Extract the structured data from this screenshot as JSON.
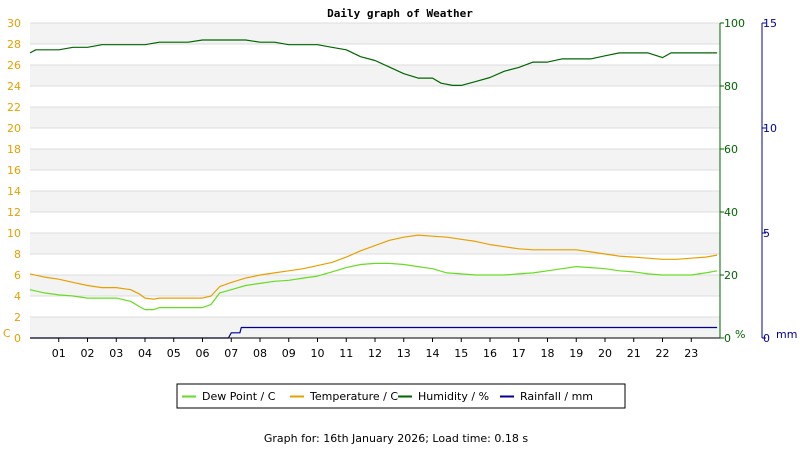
{
  "chart_data": {
    "type": "line",
    "title": "Daily graph of Weather",
    "footer": "Graph for: 16th January 2026; Load time: 0.18 s",
    "x_ticks": [
      "01",
      "02",
      "03",
      "04",
      "05",
      "06",
      "07",
      "08",
      "09",
      "10",
      "11",
      "12",
      "13",
      "14",
      "15",
      "16",
      "17",
      "18",
      "19",
      "20",
      "21",
      "22",
      "23"
    ],
    "x_range": [
      0,
      24
    ],
    "axes": {
      "temperature": {
        "unit_label": "C",
        "ylim": [
          0,
          30
        ],
        "ticks": [
          "0",
          "2",
          "4",
          "6",
          "8",
          "10",
          "12",
          "14",
          "16",
          "18",
          "20",
          "22",
          "24",
          "26",
          "28",
          "30"
        ],
        "color": "#e8a000"
      },
      "humidity": {
        "unit_label": "%",
        "ylim": [
          0,
          100
        ],
        "ticks": [
          "0",
          "20",
          "40",
          "60",
          "80",
          "100"
        ],
        "color": "#006600"
      },
      "rainfall": {
        "unit_label": "mm",
        "ylim": [
          0,
          15
        ],
        "ticks": [
          "0",
          "5",
          "10",
          "15"
        ],
        "color": "#000099"
      }
    },
    "legend_position": "bottom",
    "series": [
      {
        "name": "Dew Point / C",
        "axis": "temperature",
        "color": "#66dd22",
        "points": [
          [
            0,
            4.6
          ],
          [
            0.5,
            4.3
          ],
          [
            1,
            4.1
          ],
          [
            1.5,
            4.0
          ],
          [
            2,
            3.8
          ],
          [
            2.5,
            3.8
          ],
          [
            3,
            3.8
          ],
          [
            3.5,
            3.5
          ],
          [
            3.8,
            3.0
          ],
          [
            4,
            2.7
          ],
          [
            4.3,
            2.7
          ],
          [
            4.5,
            2.9
          ],
          [
            5,
            2.9
          ],
          [
            5.5,
            2.9
          ],
          [
            6,
            2.9
          ],
          [
            6.3,
            3.2
          ],
          [
            6.6,
            4.3
          ],
          [
            7,
            4.6
          ],
          [
            7.5,
            5.0
          ],
          [
            8,
            5.2
          ],
          [
            8.5,
            5.4
          ],
          [
            9,
            5.5
          ],
          [
            9.5,
            5.7
          ],
          [
            10,
            5.9
          ],
          [
            10.5,
            6.3
          ],
          [
            11,
            6.7
          ],
          [
            11.5,
            7.0
          ],
          [
            12,
            7.1
          ],
          [
            12.5,
            7.1
          ],
          [
            13,
            7.0
          ],
          [
            13.5,
            6.8
          ],
          [
            14,
            6.6
          ],
          [
            14.5,
            6.2
          ],
          [
            15,
            6.1
          ],
          [
            15.5,
            6.0
          ],
          [
            16,
            6.0
          ],
          [
            16.5,
            6.0
          ],
          [
            17,
            6.1
          ],
          [
            17.5,
            6.2
          ],
          [
            18,
            6.4
          ],
          [
            18.5,
            6.6
          ],
          [
            19,
            6.8
          ],
          [
            19.5,
            6.7
          ],
          [
            20,
            6.6
          ],
          [
            20.5,
            6.4
          ],
          [
            21,
            6.3
          ],
          [
            21.5,
            6.1
          ],
          [
            22,
            6.0
          ],
          [
            22.5,
            6.0
          ],
          [
            23,
            6.0
          ],
          [
            23.5,
            6.2
          ],
          [
            23.9,
            6.4
          ]
        ]
      },
      {
        "name": "Temperature / C",
        "axis": "temperature",
        "color": "#e8a000",
        "points": [
          [
            0,
            6.1
          ],
          [
            0.5,
            5.8
          ],
          [
            1,
            5.6
          ],
          [
            1.5,
            5.3
          ],
          [
            2,
            5.0
          ],
          [
            2.5,
            4.8
          ],
          [
            3,
            4.8
          ],
          [
            3.5,
            4.6
          ],
          [
            3.8,
            4.2
          ],
          [
            4,
            3.8
          ],
          [
            4.3,
            3.7
          ],
          [
            4.5,
            3.8
          ],
          [
            5,
            3.8
          ],
          [
            5.5,
            3.8
          ],
          [
            6,
            3.8
          ],
          [
            6.3,
            4.0
          ],
          [
            6.6,
            4.9
          ],
          [
            7,
            5.3
          ],
          [
            7.5,
            5.7
          ],
          [
            8,
            6.0
          ],
          [
            8.5,
            6.2
          ],
          [
            9,
            6.4
          ],
          [
            9.5,
            6.6
          ],
          [
            10,
            6.9
          ],
          [
            10.5,
            7.2
          ],
          [
            11,
            7.7
          ],
          [
            11.5,
            8.3
          ],
          [
            12,
            8.8
          ],
          [
            12.5,
            9.3
          ],
          [
            13,
            9.6
          ],
          [
            13.5,
            9.8
          ],
          [
            14,
            9.7
          ],
          [
            14.5,
            9.6
          ],
          [
            15,
            9.4
          ],
          [
            15.5,
            9.2
          ],
          [
            16,
            8.9
          ],
          [
            16.5,
            8.7
          ],
          [
            17,
            8.5
          ],
          [
            17.5,
            8.4
          ],
          [
            18,
            8.4
          ],
          [
            18.5,
            8.4
          ],
          [
            19,
            8.4
          ],
          [
            19.5,
            8.2
          ],
          [
            20,
            8.0
          ],
          [
            20.5,
            7.8
          ],
          [
            21,
            7.7
          ],
          [
            21.5,
            7.6
          ],
          [
            22,
            7.5
          ],
          [
            22.5,
            7.5
          ],
          [
            23,
            7.6
          ],
          [
            23.5,
            7.7
          ],
          [
            23.9,
            7.9
          ]
        ]
      },
      {
        "name": "Humidity / %",
        "axis": "humidity",
        "color": "#006600",
        "points": [
          [
            0,
            90.5
          ],
          [
            0.2,
            91.5
          ],
          [
            0.5,
            91.5
          ],
          [
            1,
            91.5
          ],
          [
            1.5,
            92.3
          ],
          [
            2,
            92.3
          ],
          [
            2.5,
            93.1
          ],
          [
            3,
            93.1
          ],
          [
            3.5,
            93.1
          ],
          [
            4,
            93.1
          ],
          [
            4.5,
            93.9
          ],
          [
            5,
            93.9
          ],
          [
            5.5,
            93.9
          ],
          [
            6,
            94.6
          ],
          [
            6.5,
            94.6
          ],
          [
            7,
            94.6
          ],
          [
            7.5,
            94.6
          ],
          [
            8,
            93.9
          ],
          [
            8.5,
            93.9
          ],
          [
            9,
            93.1
          ],
          [
            9.5,
            93.1
          ],
          [
            10,
            93.1
          ],
          [
            10.5,
            92.3
          ],
          [
            11,
            91.5
          ],
          [
            11.5,
            89.3
          ],
          [
            12,
            88.1
          ],
          [
            12.5,
            86.0
          ],
          [
            13,
            83.9
          ],
          [
            13.5,
            82.5
          ],
          [
            14,
            82.5
          ],
          [
            14.3,
            80.9
          ],
          [
            14.7,
            80.2
          ],
          [
            15,
            80.2
          ],
          [
            15.5,
            81.4
          ],
          [
            16,
            82.7
          ],
          [
            16.5,
            84.7
          ],
          [
            17,
            85.9
          ],
          [
            17.5,
            87.6
          ],
          [
            18,
            87.6
          ],
          [
            18.5,
            88.6
          ],
          [
            19,
            88.6
          ],
          [
            19.5,
            88.6
          ],
          [
            20,
            89.6
          ],
          [
            20.5,
            90.5
          ],
          [
            21,
            90.5
          ],
          [
            21.5,
            90.5
          ],
          [
            22,
            89.0
          ],
          [
            22.3,
            90.5
          ],
          [
            23,
            90.5
          ],
          [
            23.5,
            90.5
          ],
          [
            23.9,
            90.5
          ]
        ]
      },
      {
        "name": "Rainfall / mm",
        "axis": "rainfall",
        "color": "#000099",
        "points": [
          [
            0,
            0
          ],
          [
            6.9,
            0
          ],
          [
            7.0,
            0.25
          ],
          [
            7.3,
            0.25
          ],
          [
            7.35,
            0.5
          ],
          [
            23.9,
            0.5
          ]
        ]
      }
    ]
  }
}
